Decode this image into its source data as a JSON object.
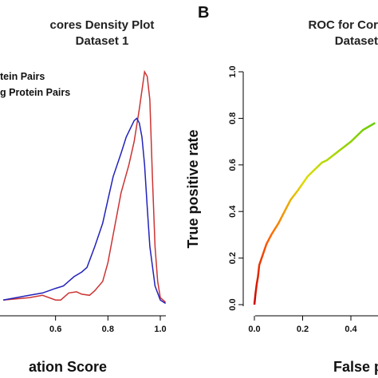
{
  "chart_data": [
    {
      "type": "line",
      "title": [
        "cores Density Plot",
        "Dataset 1"
      ],
      "xlabel": "ation Score",
      "ylabel": "",
      "xlim": [
        0.4,
        1.02
      ],
      "x_ticks": [
        "0.6",
        "0.8",
        "1.0"
      ],
      "x_tick_values": [
        0.6,
        0.8,
        1.0
      ],
      "legend": [
        "tein Pairs",
        "g Protein Pairs"
      ],
      "legend_position": "top-left",
      "series": [
        {
          "color": "#cc3333",
          "x": [
            0.4,
            0.45,
            0.5,
            0.55,
            0.6,
            0.62,
            0.65,
            0.68,
            0.7,
            0.73,
            0.75,
            0.78,
            0.8,
            0.82,
            0.85,
            0.88,
            0.9,
            0.92,
            0.94,
            0.95,
            0.96,
            0.97,
            0.98,
            0.99,
            1.0,
            1.02
          ],
          "y": [
            0.02,
            0.025,
            0.03,
            0.04,
            0.02,
            0.02,
            0.05,
            0.055,
            0.045,
            0.04,
            0.06,
            0.1,
            0.18,
            0.3,
            0.48,
            0.6,
            0.7,
            0.84,
            1.0,
            0.98,
            0.88,
            0.55,
            0.25,
            0.1,
            0.03,
            0.01
          ]
        },
        {
          "color": "#2222bb",
          "x": [
            0.4,
            0.45,
            0.5,
            0.55,
            0.6,
            0.63,
            0.65,
            0.67,
            0.7,
            0.72,
            0.75,
            0.78,
            0.8,
            0.82,
            0.85,
            0.87,
            0.9,
            0.91,
            0.92,
            0.93,
            0.94,
            0.95,
            0.96,
            0.98,
            1.0,
            1.02
          ],
          "y": [
            0.02,
            0.03,
            0.04,
            0.05,
            0.07,
            0.08,
            0.1,
            0.12,
            0.14,
            0.16,
            0.25,
            0.35,
            0.45,
            0.55,
            0.65,
            0.72,
            0.79,
            0.8,
            0.78,
            0.72,
            0.6,
            0.42,
            0.25,
            0.08,
            0.02,
            0.005
          ]
        }
      ]
    },
    {
      "type": "line",
      "panel_label": "B",
      "title": [
        "ROC for Cor",
        "Dataset"
      ],
      "xlabel": "False p",
      "ylabel": "True positive rate",
      "xlim": [
        0,
        0.5
      ],
      "ylim": [
        0,
        1.0
      ],
      "x_ticks": [
        "0.0",
        "0.2",
        "0.4"
      ],
      "x_tick_values": [
        0,
        0.2,
        0.4
      ],
      "y_ticks": [
        "0.0",
        "0.2",
        "0.4",
        "0.6",
        "0.8",
        "1.0"
      ],
      "y_tick_values": [
        0,
        0.2,
        0.4,
        0.6,
        0.8,
        1.0
      ],
      "series": [
        {
          "color_gradient": [
            "#cc0000",
            "#ff6600",
            "#dddd00",
            "#66cc00"
          ],
          "x": [
            0.0,
            0.005,
            0.01,
            0.015,
            0.02,
            0.03,
            0.05,
            0.07,
            0.1,
            0.13,
            0.15,
            0.18,
            0.2,
            0.22,
            0.25,
            0.28,
            0.3,
            0.35,
            0.4,
            0.45,
            0.5
          ],
          "y": [
            0.0,
            0.05,
            0.09,
            0.12,
            0.17,
            0.2,
            0.26,
            0.3,
            0.35,
            0.41,
            0.45,
            0.49,
            0.52,
            0.55,
            0.58,
            0.61,
            0.62,
            0.66,
            0.7,
            0.75,
            0.78
          ]
        }
      ]
    }
  ]
}
